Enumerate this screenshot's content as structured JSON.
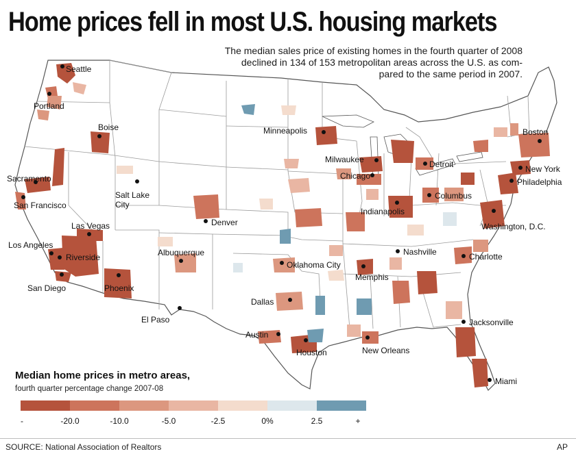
{
  "headline": "Home prices fell in most U.S. housing markets",
  "subhead_lines": [
    "The median sales price of existing homes in the fourth quarter of 2008",
    "declined in 134 of 153 metropolitan areas across the U.S. as com-",
    "pared to the same period in 2007."
  ],
  "legend": {
    "title": "Median home prices in metro areas,",
    "subtitle": "fourth quarter percentage change 2007-08",
    "bins": [
      {
        "color": "#b5533c"
      },
      {
        "color": "#cd745c"
      },
      {
        "color": "#dc977f"
      },
      {
        "color": "#e9b6a3"
      },
      {
        "color": "#f4dccd"
      },
      {
        "color": "#dde7ec"
      },
      {
        "color": "#6f9bb1"
      }
    ],
    "tick_labels": [
      "-",
      "-20.0",
      "-10.0",
      "-5.0",
      "-2.5",
      "0%",
      "2.5",
      "+"
    ]
  },
  "cities": [
    {
      "name": "Seattle"
    },
    {
      "name": "Portland"
    },
    {
      "name": "Boise"
    },
    {
      "name": "Sacramento"
    },
    {
      "name": "San Francisco"
    },
    {
      "name": "Salt Lake City"
    },
    {
      "name": "Denver"
    },
    {
      "name": "Las Vegas"
    },
    {
      "name": "Los Angeles"
    },
    {
      "name": "Riverside"
    },
    {
      "name": "San Diego"
    },
    {
      "name": "Phoenix"
    },
    {
      "name": "Albuquerque"
    },
    {
      "name": "El Paso"
    },
    {
      "name": "Oklahoma City"
    },
    {
      "name": "Dallas"
    },
    {
      "name": "Austin"
    },
    {
      "name": "Houston"
    },
    {
      "name": "Minneapolis"
    },
    {
      "name": "Milwaukee"
    },
    {
      "name": "Chicago"
    },
    {
      "name": "Detroit"
    },
    {
      "name": "Indianapolis"
    },
    {
      "name": "Columbus"
    },
    {
      "name": "Memphis"
    },
    {
      "name": "Nashville"
    },
    {
      "name": "New Orleans"
    },
    {
      "name": "Boston"
    },
    {
      "name": "New York"
    },
    {
      "name": "Philadelphia"
    },
    {
      "name": "Washington, D.C."
    },
    {
      "name": "Charlotte"
    },
    {
      "name": "Jacksonville"
    },
    {
      "name": "Miami"
    }
  ],
  "source": "SOURCE: National Association of Realtors",
  "credit": "AP"
}
